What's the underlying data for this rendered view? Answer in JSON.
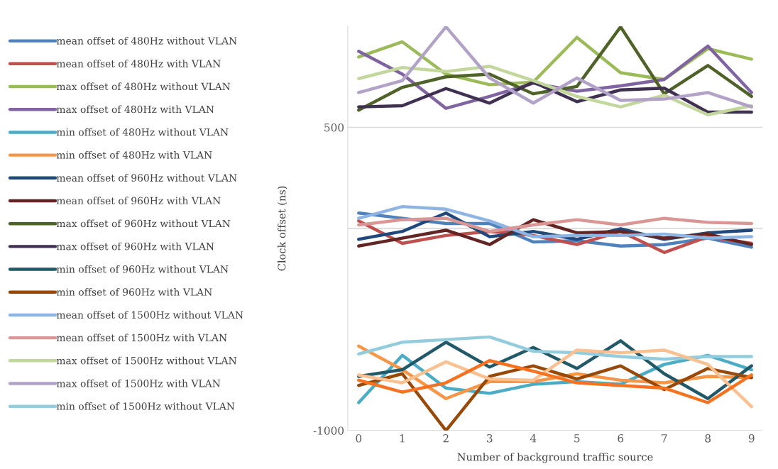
{
  "chart_data": {
    "type": "line",
    "xlabel": "Number of background traffic source",
    "ylabel": "Clock offset (ns)",
    "categories": [
      "0",
      "1",
      "2",
      "3",
      "4",
      "5",
      "6",
      "7",
      "8",
      "9"
    ],
    "ylim": [
      -1000,
      1000
    ],
    "yticks": [
      -1000,
      500
    ],
    "grid": "y",
    "legend": "left",
    "marker": "none",
    "line_style": "solid",
    "series": [
      {
        "name": "mean offset of 480Hz without VLAN",
        "color": "#4f81bd",
        "values": [
          76,
          50,
          24,
          24,
          -67,
          -61,
          -87,
          -80,
          -48,
          -93
        ]
      },
      {
        "name": "mean offset of 480Hz with VLAN",
        "color": "#c0504d",
        "values": [
          37,
          -74,
          -35,
          -15,
          -35,
          -80,
          -15,
          -119,
          -41,
          -74
        ]
      },
      {
        "name": "max offset of 480Hz without VLAN",
        "color": "#9bbb59",
        "values": [
          848,
          923,
          763,
          711,
          724,
          945,
          770,
          737,
          889,
          837
        ]
      },
      {
        "name": "max offset of 480Hz with VLAN",
        "color": "#8064a2",
        "values": [
          876,
          763,
          594,
          653,
          718,
          679,
          705,
          737,
          902,
          672
        ]
      },
      {
        "name": "min offset of 480Hz without VLAN",
        "color": "#4bacc6",
        "values": [
          -862,
          -628,
          -790,
          -816,
          -771,
          -758,
          -771,
          -673,
          -628,
          -699
        ]
      },
      {
        "name": "min offset of 480Hz with VLAN",
        "color": "#f79646",
        "values": [
          -582,
          -699,
          -842,
          -758,
          -758,
          -719,
          -751,
          -764,
          -732,
          -738
        ]
      },
      {
        "name": "mean offset of 960Hz without VLAN",
        "color": "#1f497d",
        "values": [
          -54,
          -15,
          76,
          -41,
          -15,
          -54,
          -2,
          -54,
          -22,
          -9
        ]
      },
      {
        "name": "mean offset of 960Hz with VLAN",
        "color": "#632523",
        "values": [
          -87,
          -48,
          -9,
          -80,
          43,
          -22,
          -15,
          -48,
          -28,
          -80
        ]
      },
      {
        "name": "max offset of 960Hz without VLAN",
        "color": "#4f6228",
        "values": [
          585,
          698,
          750,
          763,
          666,
          702,
          997,
          666,
          806,
          653
        ]
      },
      {
        "name": "max offset of 960Hz with VLAN",
        "color": "#403152",
        "values": [
          601,
          607,
          692,
          620,
          724,
          627,
          685,
          694,
          575,
          575
        ]
      },
      {
        "name": "min offset of 960Hz without VLAN",
        "color": "#215968",
        "values": [
          -732,
          -699,
          -563,
          -686,
          -589,
          -693,
          -556,
          -719,
          -842,
          -680
        ]
      },
      {
        "name": "min offset of 960Hz with VLAN",
        "color": "#984807",
        "values": [
          -777,
          -719,
          -1000,
          -732,
          -680,
          -745,
          -680,
          -797,
          -693,
          -738
        ]
      },
      {
        "name": "mean offset of 1500Hz without VLAN",
        "color": "#8eb4e3",
        "values": [
          50,
          108,
          95,
          37,
          -41,
          -35,
          -35,
          -28,
          -48,
          -41
        ]
      },
      {
        "name": "mean offset of 1500Hz with VLAN",
        "color": "#d99694",
        "values": [
          17,
          43,
          50,
          -15,
          17,
          43,
          17,
          50,
          30,
          24
        ]
      },
      {
        "name": "max offset of 1500Hz without VLAN",
        "color": "#c3d69b",
        "values": [
          741,
          796,
          776,
          802,
          731,
          653,
          601,
          659,
          562,
          607
        ]
      },
      {
        "name": "max offset of 1500Hz with VLAN",
        "color": "#b3a2c7",
        "values": [
          672,
          731,
          997,
          744,
          620,
          744,
          633,
          640,
          672,
          601
        ]
      },
      {
        "name": "min offset of 1500Hz without VLAN",
        "color": "#93cddd",
        "values": [
          -621,
          -563,
          -550,
          -537,
          -608,
          -615,
          -634,
          -647,
          -634,
          -634
        ]
      },
      {
        "color": "#fac090",
        "values": [
          -725,
          -764,
          -660,
          -745,
          -751,
          -602,
          -615,
          -602,
          -673,
          -882
        ]
      },
      {
        "color": "#f57220",
        "values": [
          -751,
          -810,
          -764,
          -654,
          -706,
          -764,
          -777,
          -790,
          -862,
          -725
        ]
      }
    ]
  }
}
